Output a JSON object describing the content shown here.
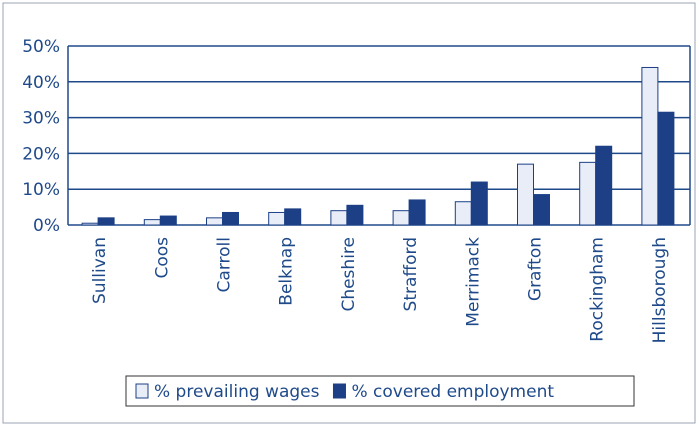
{
  "chart_data": {
    "type": "bar",
    "categories": [
      "Sullivan",
      "Coos",
      "Carroll",
      "Belknap",
      "Cheshire",
      "Strafford",
      "Merrimack",
      "Grafton",
      "Rockingham",
      "Hillsborough"
    ],
    "series": [
      {
        "name": "% prevailing wages",
        "color": "#e9edf8",
        "values": [
          0.5,
          1.5,
          2,
          3.5,
          4,
          4,
          6.5,
          17,
          17.5,
          44
        ]
      },
      {
        "name": "% covered employment",
        "color": "#1c3f86",
        "values": [
          2,
          2.5,
          3.5,
          4.5,
          5.5,
          7,
          12,
          8.5,
          22,
          31.5
        ]
      }
    ],
    "ylim": [
      0,
      50
    ],
    "yticks": [
      {
        "value": 0,
        "label": "0%"
      },
      {
        "value": 10,
        "label": "10%"
      },
      {
        "value": 20,
        "label": "20%"
      },
      {
        "value": 30,
        "label": "30%"
      },
      {
        "value": 40,
        "label": "40%"
      },
      {
        "value": 50,
        "label": "50%"
      }
    ],
    "grid": true,
    "legend": "bottom"
  }
}
